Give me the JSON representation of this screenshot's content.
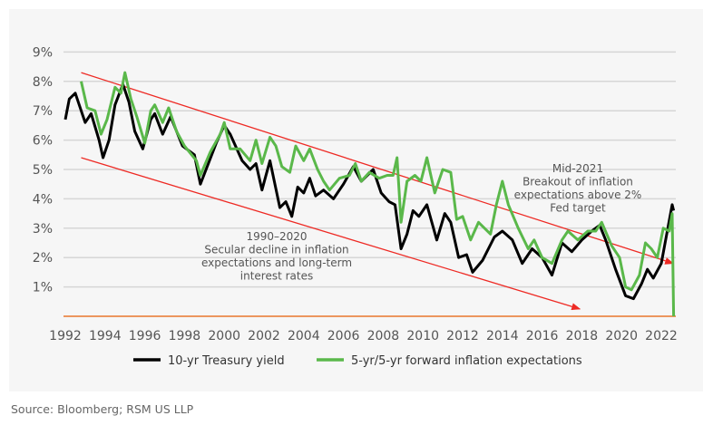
{
  "chart_data": {
    "type": "line",
    "title": "",
    "xlabel": "",
    "ylabel": "",
    "xlim": [
      1992,
      2022.7
    ],
    "ylim": [
      0,
      9
    ],
    "grid": "horizontal",
    "legend_placement": "bottom",
    "x_ticks": [
      "1992",
      "1994",
      "1996",
      "1998",
      "2000",
      "2002",
      "2004",
      "2006",
      "2008",
      "2010",
      "2012",
      "2014",
      "2016",
      "2018",
      "2020",
      "2022"
    ],
    "y_ticks": [
      "1%",
      "2%",
      "3%",
      "4%",
      "5%",
      "6%",
      "7%",
      "8%",
      "9%"
    ],
    "series": [
      {
        "name": "10-yr Treasury yield",
        "color": "#000000",
        "x": [
          1992.0,
          1992.2,
          1992.5,
          1992.8,
          1993.0,
          1993.3,
          1993.7,
          1993.9,
          1994.2,
          1994.5,
          1994.9,
          1995.2,
          1995.5,
          1995.9,
          1996.3,
          1996.5,
          1996.9,
          1997.3,
          1997.9,
          1998.5,
          1998.8,
          1999.2,
          1999.6,
          2000.0,
          2000.3,
          2000.9,
          2001.3,
          2001.6,
          2001.9,
          2002.3,
          2002.8,
          2003.1,
          2003.4,
          2003.7,
          2004.0,
          2004.3,
          2004.6,
          2005.0,
          2005.5,
          2006.0,
          2006.5,
          2006.9,
          2007.5,
          2007.9,
          2008.3,
          2008.6,
          2008.9,
          2009.2,
          2009.5,
          2009.8,
          2010.2,
          2010.7,
          2011.1,
          2011.4,
          2011.8,
          2012.2,
          2012.5,
          2013.0,
          2013.6,
          2014.0,
          2014.5,
          2015.0,
          2015.5,
          2016.0,
          2016.5,
          2017.0,
          2017.5,
          2018.0,
          2018.5,
          2018.9,
          2019.2,
          2019.7,
          2020.2,
          2020.6,
          2021.0,
          2021.3,
          2021.6,
          2022.0,
          2022.3,
          2022.55,
          2022.62
        ],
        "y": [
          6.7,
          7.4,
          7.6,
          7.0,
          6.6,
          6.9,
          6.0,
          5.4,
          6.0,
          7.2,
          7.9,
          7.3,
          6.3,
          5.7,
          6.7,
          6.9,
          6.2,
          6.8,
          5.8,
          5.5,
          4.5,
          5.2,
          5.9,
          6.5,
          6.2,
          5.3,
          5.0,
          5.2,
          4.3,
          5.3,
          3.7,
          3.9,
          3.4,
          4.4,
          4.2,
          4.7,
          4.1,
          4.3,
          4.0,
          4.5,
          5.1,
          4.6,
          5.0,
          4.2,
          3.9,
          3.8,
          2.3,
          2.8,
          3.6,
          3.4,
          3.8,
          2.6,
          3.5,
          3.2,
          2.0,
          2.1,
          1.5,
          1.9,
          2.7,
          2.9,
          2.6,
          1.8,
          2.3,
          2.0,
          1.4,
          2.5,
          2.2,
          2.6,
          2.9,
          3.1,
          2.6,
          1.6,
          0.7,
          0.6,
          1.1,
          1.6,
          1.3,
          1.8,
          2.9,
          3.8,
          3.6
        ]
      },
      {
        "name": "5-yr/5-yr forward inflation expectations",
        "color": "#5ab84a",
        "x": [
          1992.8,
          1993.1,
          1993.5,
          1993.8,
          1994.1,
          1994.5,
          1994.8,
          1995.0,
          1995.3,
          1995.6,
          1996.0,
          1996.3,
          1996.5,
          1996.9,
          1997.2,
          1997.6,
          1998.0,
          1998.6,
          1998.8,
          1999.3,
          1999.8,
          2000.0,
          2000.3,
          2000.8,
          2001.3,
          2001.6,
          2001.9,
          2002.3,
          2002.6,
          2002.9,
          2003.3,
          2003.6,
          2004.0,
          2004.3,
          2004.7,
          2005.0,
          2005.3,
          2005.8,
          2006.3,
          2006.6,
          2006.9,
          2007.3,
          2007.8,
          2008.2,
          2008.5,
          2008.7,
          2008.9,
          2009.2,
          2009.6,
          2009.9,
          2010.2,
          2010.6,
          2011.0,
          2011.4,
          2011.7,
          2012.0,
          2012.4,
          2012.8,
          2013.1,
          2013.4,
          2013.7,
          2014.0,
          2014.3,
          2014.8,
          2015.3,
          2015.6,
          2016.0,
          2016.5,
          2017.0,
          2017.3,
          2017.8,
          2018.3,
          2018.7,
          2019.0,
          2019.5,
          2019.9,
          2020.2,
          2020.5,
          2020.9,
          2021.2,
          2021.5,
          2021.8,
          2022.1,
          2022.4,
          2022.55,
          2022.62
        ],
        "y": [
          8.0,
          7.1,
          7.0,
          6.2,
          6.7,
          7.8,
          7.6,
          8.3,
          7.4,
          6.8,
          5.9,
          7.0,
          7.2,
          6.6,
          7.1,
          6.3,
          5.8,
          5.3,
          4.8,
          5.6,
          6.2,
          6.6,
          5.7,
          5.7,
          5.3,
          6.0,
          5.2,
          6.1,
          5.8,
          5.1,
          4.9,
          5.8,
          5.3,
          5.7,
          5.0,
          4.6,
          4.3,
          4.7,
          4.8,
          5.2,
          4.6,
          4.9,
          4.7,
          4.8,
          4.8,
          5.4,
          3.2,
          4.6,
          4.8,
          4.6,
          5.4,
          4.2,
          5.0,
          4.9,
          3.3,
          3.4,
          2.6,
          3.2,
          3.0,
          2.8,
          3.8,
          4.6,
          3.8,
          3.0,
          2.3,
          2.6,
          2.0,
          1.8,
          2.6,
          2.9,
          2.6,
          2.9,
          2.9,
          3.2,
          2.4,
          2.0,
          1.0,
          0.9,
          1.4,
          2.5,
          2.3,
          2.0,
          3.0,
          2.9,
          3.5,
          0.0
        ]
      }
    ],
    "trend_lines": [
      {
        "from": [
          1992.8,
          8.3
        ],
        "to": [
          2022.6,
          1.8
        ],
        "color": "#ee2a24"
      },
      {
        "from": [
          1992.8,
          5.4
        ],
        "to": [
          2017.9,
          0.25
        ],
        "color": "#ee2a24"
      }
    ],
    "baseline_color": "#e8762c",
    "annotations": [
      {
        "lines": [
          "1990–2020",
          "Secular decline in inflation",
          "expectations and long-term",
          "interest rates"
        ]
      },
      {
        "lines": [
          "Mid-2021",
          "Breakout of inflation",
          "expectations above 2%",
          "Fed target"
        ]
      }
    ]
  },
  "source": "Source: Bloomberg; RSM US LLP"
}
